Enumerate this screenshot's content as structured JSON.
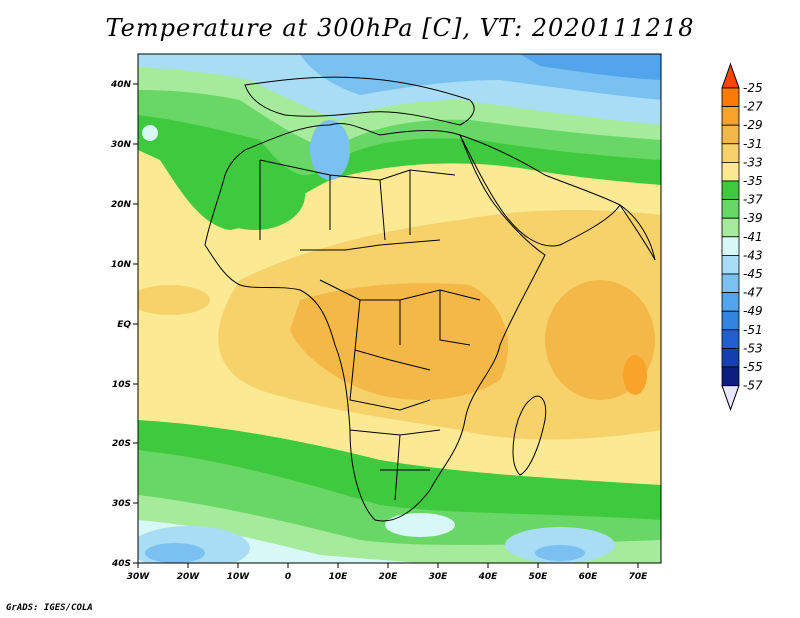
{
  "title": "Temperature at 300hPa [C], VT: 2020111218",
  "footer": "GrADS: IGES/COLA",
  "map": {
    "lat_labels": [
      "40N",
      "30N",
      "20N",
      "10N",
      "EQ",
      "10S",
      "20S",
      "30S",
      "40S"
    ],
    "lon_labels": [
      "30W",
      "20W",
      "10W",
      "0",
      "10E",
      "20E",
      "30E",
      "40E",
      "50E",
      "60E",
      "70E"
    ]
  },
  "legend": {
    "labels": [
      "-25",
      "-27",
      "-29",
      "-31",
      "-33",
      "-35",
      "-37",
      "-39",
      "-41",
      "-43",
      "-45",
      "-47",
      "-49",
      "-51",
      "-53",
      "-55",
      "-57"
    ],
    "colors": [
      "#ff4500",
      "#ff7a00",
      "#f9a32a",
      "#f3b848",
      "#f7d26b",
      "#fbe994",
      "#3ec93e",
      "#69d765",
      "#a6eb9c",
      "#d7f8f6",
      "#a9dcf5",
      "#7ac0f0",
      "#52a4ec",
      "#3383e0",
      "#1f5fd0",
      "#1440b0",
      "#0c1f80"
    ]
  }
}
